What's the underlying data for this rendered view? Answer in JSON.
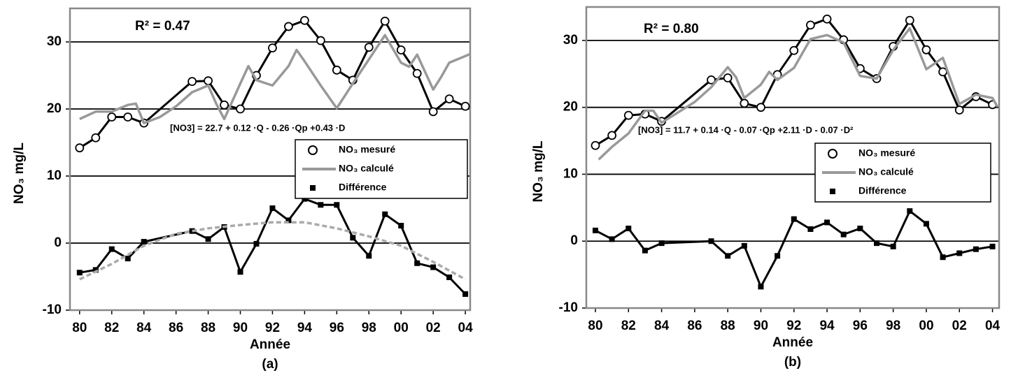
{
  "chart_data": [
    {
      "type": "line",
      "panel_label": "(a)",
      "xlabel": "Année",
      "ylabel": "NO₃ mg/L",
      "annotations": [
        "R² = 0.47",
        "[NO3] = 22.7 + 0.12 ·Q - 0.26 ·Qp +0.43 ·D"
      ],
      "xlim": [
        1979.4,
        2004.3
      ],
      "ylim": [
        -10,
        35
      ],
      "xticks": [
        {
          "value": 1980,
          "label": "80"
        },
        {
          "value": 1982,
          "label": "82"
        },
        {
          "value": 1984,
          "label": "84"
        },
        {
          "value": 1986,
          "label": "86"
        },
        {
          "value": 1988,
          "label": "88"
        },
        {
          "value": 1990,
          "label": "90"
        },
        {
          "value": 1992,
          "label": "92"
        },
        {
          "value": 1994,
          "label": "94"
        },
        {
          "value": 1996,
          "label": "96"
        },
        {
          "value": 1998,
          "label": "98"
        },
        {
          "value": 2000,
          "label": "00"
        },
        {
          "value": 2002,
          "label": "02"
        },
        {
          "value": 2004,
          "label": "04"
        }
      ],
      "yticks": [
        -10,
        0,
        10,
        20,
        30
      ],
      "grid": true,
      "legend": "right",
      "series": [
        {
          "name": "NO₃ mesuré",
          "color": "#000000",
          "marker": "circle",
          "dash": false,
          "x": [
            1980,
            1981,
            1982,
            1983,
            1984,
            1987,
            1988,
            1989,
            1990,
            1991,
            1992,
            1993,
            1994,
            1995,
            1996,
            1997,
            1998,
            1999,
            2000,
            2001,
            2002,
            2003,
            2004
          ],
          "values": [
            14.2,
            15.7,
            18.8,
            18.8,
            17.9,
            24.1,
            24.2,
            20.6,
            20.0,
            25.0,
            29.1,
            32.3,
            33.2,
            30.2,
            25.8,
            24.3,
            29.2,
            33.1,
            28.8,
            25.3,
            19.6,
            21.5,
            20.4
          ]
        },
        {
          "name": "NO₃ calculé",
          "color": "#999999",
          "marker": "none",
          "dash": false,
          "x": [
            1980,
            1981,
            1982,
            1983,
            1983.5,
            1984,
            1985,
            1986,
            1987,
            1988,
            1988.5,
            1989,
            1990,
            1990.5,
            1991,
            1992,
            1993,
            1993.5,
            1994,
            1995,
            1996,
            1997,
            1998,
            1999,
            2000,
            2000.5,
            2001,
            2002,
            2002.5,
            2003,
            2004,
            2004.3
          ],
          "values": [
            18.5,
            19.6,
            19.6,
            20.6,
            20.8,
            17.9,
            18.8,
            20.4,
            22.5,
            23.5,
            20.8,
            18.5,
            23.8,
            26.4,
            24.3,
            23.5,
            26.4,
            28.8,
            27.1,
            23.5,
            20.1,
            23.8,
            27.4,
            31.0,
            26.9,
            26.3,
            28.1,
            22.9,
            24.8,
            26.9,
            27.9,
            28.2
          ]
        },
        {
          "name": "Différence",
          "color": "#000000",
          "marker": "square",
          "dash": false,
          "x": [
            1980,
            1981,
            1982,
            1983,
            1984,
            1987,
            1988,
            1989,
            1990,
            1991,
            1992,
            1993,
            1994,
            1995,
            1996,
            1997,
            1998,
            1999,
            2000,
            2001,
            2002,
            2003,
            2004
          ],
          "values": [
            -4.4,
            -4.0,
            -0.9,
            -2.3,
            0.2,
            1.8,
            0.6,
            2.4,
            -4.3,
            -0.1,
            5.2,
            3.4,
            6.6,
            5.7,
            5.7,
            0.8,
            -1.9,
            4.3,
            2.6,
            -3.0,
            -3.6,
            -5.1,
            -7.6
          ]
        },
        {
          "color": "#aaaaaa",
          "marker": "none",
          "dash": true,
          "x": [
            1980,
            1982,
            1984,
            1986,
            1988,
            1990,
            1992,
            1994,
            1996,
            1998,
            2000,
            2002,
            2004
          ],
          "values": [
            -5.4,
            -3.1,
            -0.4,
            1.4,
            2.2,
            2.7,
            3.1,
            3.1,
            2.2,
            1.0,
            -0.4,
            -2.8,
            -5.4
          ]
        }
      ]
    },
    {
      "type": "line",
      "panel_label": "(b)",
      "xlabel": "Année",
      "ylabel": "NO₃ mg/L",
      "annotations": [
        "R² = 0.80",
        "[NO3] = 11.7 + 0.14 ·Q - 0.07 ·Qp +2.11 ·D - 0.07 ·D²"
      ],
      "xlim": [
        1979.45,
        2004.4
      ],
      "ylim": [
        -10,
        35
      ],
      "xticks": [
        {
          "value": 1980,
          "label": "80"
        },
        {
          "value": 1982,
          "label": "82"
        },
        {
          "value": 1984,
          "label": "84"
        },
        {
          "value": 1986,
          "label": "86"
        },
        {
          "value": 1988,
          "label": "88"
        },
        {
          "value": 1990,
          "label": "90"
        },
        {
          "value": 1992,
          "label": "92"
        },
        {
          "value": 1994,
          "label": "94"
        },
        {
          "value": 1996,
          "label": "96"
        },
        {
          "value": 1998,
          "label": "98"
        },
        {
          "value": 2000,
          "label": "00"
        },
        {
          "value": 2002,
          "label": "02"
        },
        {
          "value": 2004,
          "label": "04"
        }
      ],
      "yticks": [
        -10,
        0,
        10,
        20,
        30
      ],
      "grid": true,
      "legend": "right",
      "series": [
        {
          "name": "NO₃ mesuré",
          "color": "#000000",
          "marker": "circle",
          "dash": false,
          "x": [
            1980,
            1981,
            1982,
            1983,
            1984,
            1987,
            1988,
            1989,
            1990,
            1991,
            1992,
            1993,
            1994,
            1995,
            1996,
            1997,
            1998,
            1999,
            2000,
            2001,
            2002,
            2003,
            2004
          ],
          "values": [
            14.3,
            15.8,
            18.8,
            19.0,
            17.9,
            24.1,
            24.4,
            20.6,
            20.0,
            24.9,
            28.5,
            32.3,
            33.2,
            30.1,
            25.8,
            24.3,
            29.1,
            33.0,
            28.6,
            25.3,
            19.6,
            21.6,
            20.4
          ]
        },
        {
          "name": "NO₃ calculé",
          "color": "#999999",
          "marker": "none",
          "dash": false,
          "x": [
            1980.2,
            1981,
            1982,
            1983,
            1983.5,
            1984,
            1986,
            1987,
            1988,
            1988.5,
            1989,
            1990,
            1990.5,
            1991,
            1992,
            1993,
            1994,
            1995,
            1996,
            1997,
            1998,
            1999,
            2000,
            2001,
            2002,
            2003,
            2004,
            2004.3
          ],
          "values": [
            12.2,
            14.1,
            16.1,
            19.5,
            19.5,
            17.7,
            20.8,
            23.0,
            26.0,
            24.5,
            21.4,
            23.4,
            25.3,
            24.1,
            25.9,
            30.2,
            30.8,
            29.7,
            24.7,
            24.3,
            28.6,
            31.8,
            25.7,
            27.4,
            20.5,
            21.9,
            21.4,
            20.1
          ]
        },
        {
          "name": "Différence",
          "color": "#000000",
          "marker": "square",
          "dash": false,
          "x": [
            1980,
            1981,
            1982,
            1983,
            1984,
            1987,
            1988,
            1989,
            1990,
            1991,
            1992,
            1993,
            1994,
            1995,
            1996,
            1997,
            1998,
            1999,
            2000,
            2001,
            2002,
            2003,
            2004
          ],
          "values": [
            1.6,
            0.3,
            1.9,
            -1.4,
            -0.3,
            0.0,
            -2.2,
            -0.7,
            -6.8,
            -2.2,
            3.3,
            1.8,
            2.8,
            1.0,
            1.9,
            -0.3,
            -0.8,
            4.5,
            2.6,
            -2.4,
            -1.8,
            -1.2,
            -0.8
          ]
        }
      ]
    }
  ]
}
